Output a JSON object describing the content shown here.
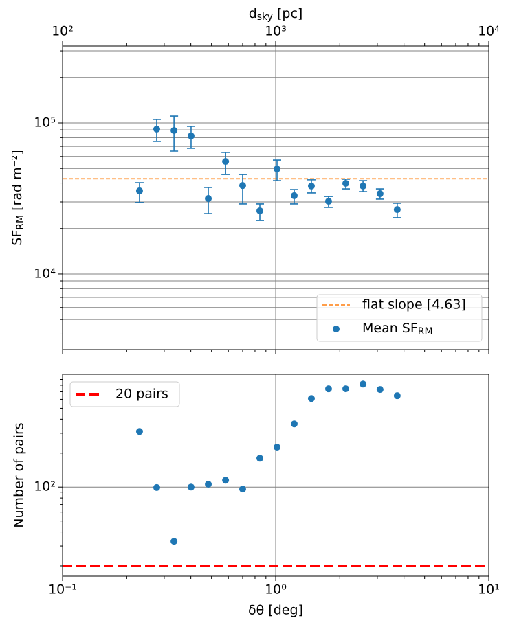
{
  "chart_data": [
    {
      "type": "scatter",
      "x2label": {
        "text": "d",
        "sub": "sky",
        "rest": " [pc]"
      },
      "ylabel": {
        "text": "SF",
        "sub": "RM",
        "rest": " [rad m⁻²]"
      },
      "log_x": true,
      "log_y": true,
      "xlim": [
        0.1,
        10
      ],
      "xticks": [
        0.1,
        1,
        10
      ],
      "xminor": [
        0.2,
        0.3,
        0.4,
        0.5,
        0.6,
        0.7,
        0.8,
        0.9,
        2,
        3,
        4,
        5,
        6,
        7,
        8,
        9
      ],
      "x2lim": [
        100,
        10000
      ],
      "x2ticks": [
        {
          "value": 100,
          "label": "10²"
        },
        {
          "value": 1000,
          "label": "10³"
        },
        {
          "value": 10000,
          "label": "10⁴"
        }
      ],
      "x2minor": [
        200,
        300,
        400,
        500,
        600,
        700,
        800,
        900,
        2000,
        3000,
        4000,
        5000,
        6000,
        7000,
        8000,
        9000
      ],
      "ylim": [
        3160,
        323000
      ],
      "yticks": [
        {
          "value": 10000,
          "label": "10⁴"
        },
        {
          "value": 100000,
          "label": "10⁵"
        }
      ],
      "yminor": [
        4000,
        5000,
        6000,
        7000,
        8000,
        9000,
        20000,
        30000,
        40000,
        50000,
        60000,
        70000,
        80000,
        90000,
        200000,
        300000
      ],
      "grid_y": "both",
      "grid_x": "major",
      "x": [
        0.2297,
        0.2766,
        0.3334,
        0.401,
        0.483,
        0.582,
        0.7,
        0.843,
        1.015,
        1.222,
        1.471,
        1.771,
        2.133,
        2.57,
        3.09,
        3.72
      ],
      "series": [
        {
          "name": "Mean SF",
          "name_sub": "RM",
          "color": "#1f77b4",
          "values": [
            35500,
            91000,
            89100,
            82000,
            31600,
            55600,
            38500,
            26200,
            49600,
            33000,
            38200,
            30300,
            39800,
            38200,
            34000,
            26700
          ],
          "yerr_lower": [
            5800,
            15600,
            24000,
            14100,
            6500,
            10000,
            9400,
            3600,
            8100,
            3900,
            3800,
            2700,
            3200,
            3100,
            2700,
            3100
          ],
          "yerr_upper": [
            4700,
            14400,
            21900,
            12900,
            5800,
            8200,
            7100,
            2900,
            7200,
            3200,
            3800,
            2300,
            2600,
            3300,
            2600,
            2700
          ]
        }
      ],
      "hline": {
        "name": "flat slope [4.63]",
        "value": 42700,
        "color": "#ff7f0e",
        "style": "dashed"
      },
      "legend": "lower right"
    },
    {
      "type": "scatter",
      "xlabel": "δθ [deg]",
      "ylabel": "Number of pairs",
      "log_x": true,
      "log_y": true,
      "xlim": [
        0.1,
        10
      ],
      "xticks": [
        {
          "value": 0.1,
          "label": "10⁻¹"
        },
        {
          "value": 1,
          "label": "10⁰"
        },
        {
          "value": 10,
          "label": "10¹"
        }
      ],
      "xminor": [
        0.2,
        0.3,
        0.4,
        0.5,
        0.6,
        0.7,
        0.8,
        0.9,
        2,
        3,
        4,
        5,
        6,
        7,
        8,
        9
      ],
      "ylim": [
        16.2,
        1000
      ],
      "yticks": [
        {
          "value": 100,
          "label": "10²"
        }
      ],
      "yminor": [
        20,
        30,
        40,
        50,
        60,
        70,
        80,
        90,
        200,
        300,
        400,
        500,
        600,
        700,
        800,
        900
      ],
      "grid_y": "major",
      "grid_x": "major",
      "x": [
        0.2297,
        0.2766,
        0.3334,
        0.401,
        0.483,
        0.582,
        0.7,
        0.843,
        1.015,
        1.222,
        1.471,
        1.771,
        2.133,
        2.57,
        3.09,
        3.72
      ],
      "series": [
        {
          "color": "#1f77b4",
          "values": [
            311,
            99,
            33,
            100,
            106,
            115,
            96,
            180,
            226,
            363,
            610,
            743,
            744,
            819,
            733,
            646
          ]
        }
      ],
      "hline": {
        "name": "20 pairs",
        "value": 20,
        "color": "#ff0000",
        "style": "dashed"
      },
      "legend": "upper left"
    }
  ]
}
